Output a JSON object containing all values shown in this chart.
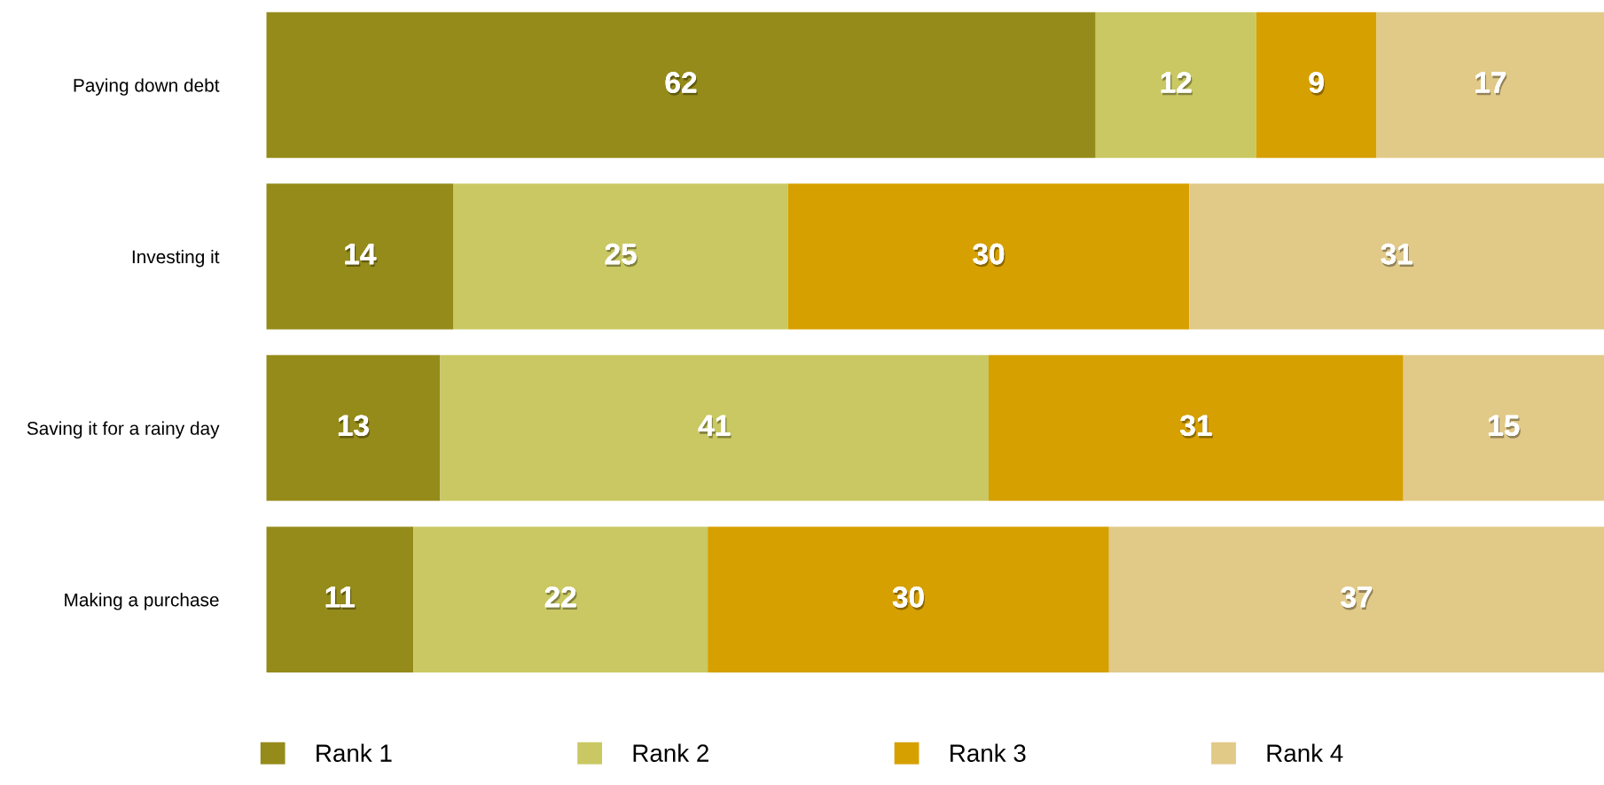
{
  "chart_data": {
    "type": "bar",
    "orientation": "horizontal",
    "stacked": true,
    "data_labels": true,
    "legend": "bottom",
    "grid": false,
    "tick_labels": "y",
    "categories": [
      "Paying down debt",
      "Investing it",
      "Saving it for a rainy day",
      "Making a purchase"
    ],
    "series": [
      {
        "name": "Rank 1",
        "color": "#958b1a",
        "values": [
          62,
          14,
          13,
          11
        ]
      },
      {
        "name": "Rank 2",
        "color": "#c9c862",
        "values": [
          12,
          25,
          41,
          22
        ]
      },
      {
        "name": "Rank 3",
        "color": "#d6a000",
        "values": [
          9,
          30,
          31,
          30
        ]
      },
      {
        "name": "Rank 4",
        "color": "#e1c988",
        "values": [
          17,
          31,
          15,
          37
        ]
      }
    ]
  }
}
